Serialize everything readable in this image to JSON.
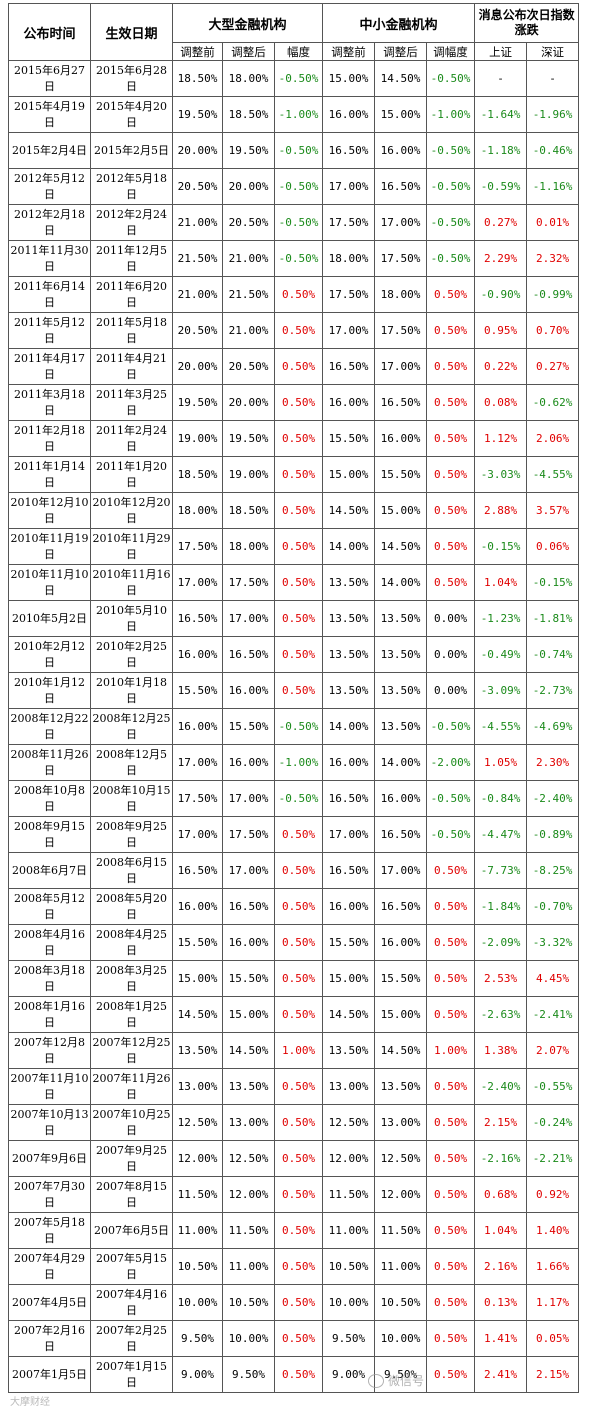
{
  "header": {
    "announce_date": "公布时间",
    "effective_date": "生效日期",
    "large_inst": "大型金融机构",
    "small_inst": "中小金融机构",
    "market": "消息公布次日指数涨跌",
    "before": "调整前",
    "after": "调整后",
    "change": "幅度",
    "change_small": "调幅度",
    "sh": "上证",
    "sz": "深证"
  },
  "rows": [
    [
      "2015年6月27日",
      "2015年6月28日",
      "18.50%",
      "18.00%",
      "-0.50%",
      "15.00%",
      "14.50%",
      "-0.50%",
      "-",
      "-"
    ],
    [
      "2015年4月19日",
      "2015年4月20日",
      "19.50%",
      "18.50%",
      "-1.00%",
      "16.00%",
      "15.00%",
      "-1.00%",
      "-1.64%",
      "-1.96%"
    ],
    [
      "2015年2月4日",
      "2015年2月5日",
      "20.00%",
      "19.50%",
      "-0.50%",
      "16.50%",
      "16.00%",
      "-0.50%",
      "-1.18%",
      "-0.46%"
    ],
    [
      "2012年5月12日",
      "2012年5月18日",
      "20.50%",
      "20.00%",
      "-0.50%",
      "17.00%",
      "16.50%",
      "-0.50%",
      "-0.59%",
      "-1.16%"
    ],
    [
      "2012年2月18日",
      "2012年2月24日",
      "21.00%",
      "20.50%",
      "-0.50%",
      "17.50%",
      "17.00%",
      "-0.50%",
      "0.27%",
      "0.01%"
    ],
    [
      "2011年11月30日",
      "2011年12月5日",
      "21.50%",
      "21.00%",
      "-0.50%",
      "18.00%",
      "17.50%",
      "-0.50%",
      "2.29%",
      "2.32%"
    ],
    [
      "2011年6月14日",
      "2011年6月20日",
      "21.00%",
      "21.50%",
      "0.50%",
      "17.50%",
      "18.00%",
      "0.50%",
      "-0.90%",
      "-0.99%"
    ],
    [
      "2011年5月12日",
      "2011年5月18日",
      "20.50%",
      "21.00%",
      "0.50%",
      "17.00%",
      "17.50%",
      "0.50%",
      "0.95%",
      "0.70%"
    ],
    [
      "2011年4月17日",
      "2011年4月21日",
      "20.00%",
      "20.50%",
      "0.50%",
      "16.50%",
      "17.00%",
      "0.50%",
      "0.22%",
      "0.27%"
    ],
    [
      "2011年3月18日",
      "2011年3月25日",
      "19.50%",
      "20.00%",
      "0.50%",
      "16.00%",
      "16.50%",
      "0.50%",
      "0.08%",
      "-0.62%"
    ],
    [
      "2011年2月18日",
      "2011年2月24日",
      "19.00%",
      "19.50%",
      "0.50%",
      "15.50%",
      "16.00%",
      "0.50%",
      "1.12%",
      "2.06%"
    ],
    [
      "2011年1月14日",
      "2011年1月20日",
      "18.50%",
      "19.00%",
      "0.50%",
      "15.00%",
      "15.50%",
      "0.50%",
      "-3.03%",
      "-4.55%"
    ],
    [
      "2010年12月10日",
      "2010年12月20日",
      "18.00%",
      "18.50%",
      "0.50%",
      "14.50%",
      "15.00%",
      "0.50%",
      "2.88%",
      "3.57%"
    ],
    [
      "2010年11月19日",
      "2010年11月29日",
      "17.50%",
      "18.00%",
      "0.50%",
      "14.00%",
      "14.50%",
      "0.50%",
      "-0.15%",
      "0.06%"
    ],
    [
      "2010年11月10日",
      "2010年11月16日",
      "17.00%",
      "17.50%",
      "0.50%",
      "13.50%",
      "14.00%",
      "0.50%",
      "1.04%",
      "-0.15%"
    ],
    [
      "2010年5月2日",
      "2010年5月10日",
      "16.50%",
      "17.00%",
      "0.50%",
      "13.50%",
      "13.50%",
      "0.00%",
      "-1.23%",
      "-1.81%"
    ],
    [
      "2010年2月12日",
      "2010年2月25日",
      "16.00%",
      "16.50%",
      "0.50%",
      "13.50%",
      "13.50%",
      "0.00%",
      "-0.49%",
      "-0.74%"
    ],
    [
      "2010年1月12日",
      "2010年1月18日",
      "15.50%",
      "16.00%",
      "0.50%",
      "13.50%",
      "13.50%",
      "0.00%",
      "-3.09%",
      "-2.73%"
    ],
    [
      "2008年12月22日",
      "2008年12月25日",
      "16.00%",
      "15.50%",
      "-0.50%",
      "14.00%",
      "13.50%",
      "-0.50%",
      "-4.55%",
      "-4.69%"
    ],
    [
      "2008年11月26日",
      "2008年12月5日",
      "17.00%",
      "16.00%",
      "-1.00%",
      "16.00%",
      "14.00%",
      "-2.00%",
      "1.05%",
      "2.30%"
    ],
    [
      "2008年10月8日",
      "2008年10月15日",
      "17.50%",
      "17.00%",
      "-0.50%",
      "16.50%",
      "16.00%",
      "-0.50%",
      "-0.84%",
      "-2.40%"
    ],
    [
      "2008年9月15日",
      "2008年9月25日",
      "17.00%",
      "17.50%",
      "0.50%",
      "17.00%",
      "16.50%",
      "-0.50%",
      "-4.47%",
      "-0.89%"
    ],
    [
      "2008年6月7日",
      "2008年6月15日",
      "16.50%",
      "17.00%",
      "0.50%",
      "16.50%",
      "17.00%",
      "0.50%",
      "-7.73%",
      "-8.25%"
    ],
    [
      "2008年5月12日",
      "2008年5月20日",
      "16.00%",
      "16.50%",
      "0.50%",
      "16.00%",
      "16.50%",
      "0.50%",
      "-1.84%",
      "-0.70%"
    ],
    [
      "2008年4月16日",
      "2008年4月25日",
      "15.50%",
      "16.00%",
      "0.50%",
      "15.50%",
      "16.00%",
      "0.50%",
      "-2.09%",
      "-3.32%"
    ],
    [
      "2008年3月18日",
      "2008年3月25日",
      "15.00%",
      "15.50%",
      "0.50%",
      "15.00%",
      "15.50%",
      "0.50%",
      "2.53%",
      "4.45%"
    ],
    [
      "2008年1月16日",
      "2008年1月25日",
      "14.50%",
      "15.00%",
      "0.50%",
      "14.50%",
      "15.00%",
      "0.50%",
      "-2.63%",
      "-2.41%"
    ],
    [
      "2007年12月8日",
      "2007年12月25日",
      "13.50%",
      "14.50%",
      "1.00%",
      "13.50%",
      "14.50%",
      "1.00%",
      "1.38%",
      "2.07%"
    ],
    [
      "2007年11月10日",
      "2007年11月26日",
      "13.00%",
      "13.50%",
      "0.50%",
      "13.00%",
      "13.50%",
      "0.50%",
      "-2.40%",
      "-0.55%"
    ],
    [
      "2007年10月13日",
      "2007年10月25日",
      "12.50%",
      "13.00%",
      "0.50%",
      "12.50%",
      "13.00%",
      "0.50%",
      "2.15%",
      "-0.24%"
    ],
    [
      "2007年9月6日",
      "2007年9月25日",
      "12.00%",
      "12.50%",
      "0.50%",
      "12.00%",
      "12.50%",
      "0.50%",
      "-2.16%",
      "-2.21%"
    ],
    [
      "2007年7月30日",
      "2007年8月15日",
      "11.50%",
      "12.00%",
      "0.50%",
      "11.50%",
      "12.00%",
      "0.50%",
      "0.68%",
      "0.92%"
    ],
    [
      "2007年5月18日",
      "2007年6月5日",
      "11.00%",
      "11.50%",
      "0.50%",
      "11.00%",
      "11.50%",
      "0.50%",
      "1.04%",
      "1.40%"
    ],
    [
      "2007年4月29日",
      "2007年5月15日",
      "10.50%",
      "11.00%",
      "0.50%",
      "10.50%",
      "11.00%",
      "0.50%",
      "2.16%",
      "1.66%"
    ],
    [
      "2007年4月5日",
      "2007年4月16日",
      "10.00%",
      "10.50%",
      "0.50%",
      "10.00%",
      "10.50%",
      "0.50%",
      "0.13%",
      "1.17%"
    ],
    [
      "2007年2月16日",
      "2007年2月25日",
      "9.50%",
      "10.00%",
      "0.50%",
      "9.50%",
      "10.00%",
      "0.50%",
      "1.41%",
      "0.05%"
    ],
    [
      "2007年1月5日",
      "2007年1月15日",
      "9.00%",
      "9.50%",
      "0.50%",
      "9.00%",
      "9.50%",
      "0.50%",
      "2.41%",
      "2.15%"
    ]
  ],
  "watermarks": {
    "left": "大摩财经",
    "right": "微信号 "
  }
}
